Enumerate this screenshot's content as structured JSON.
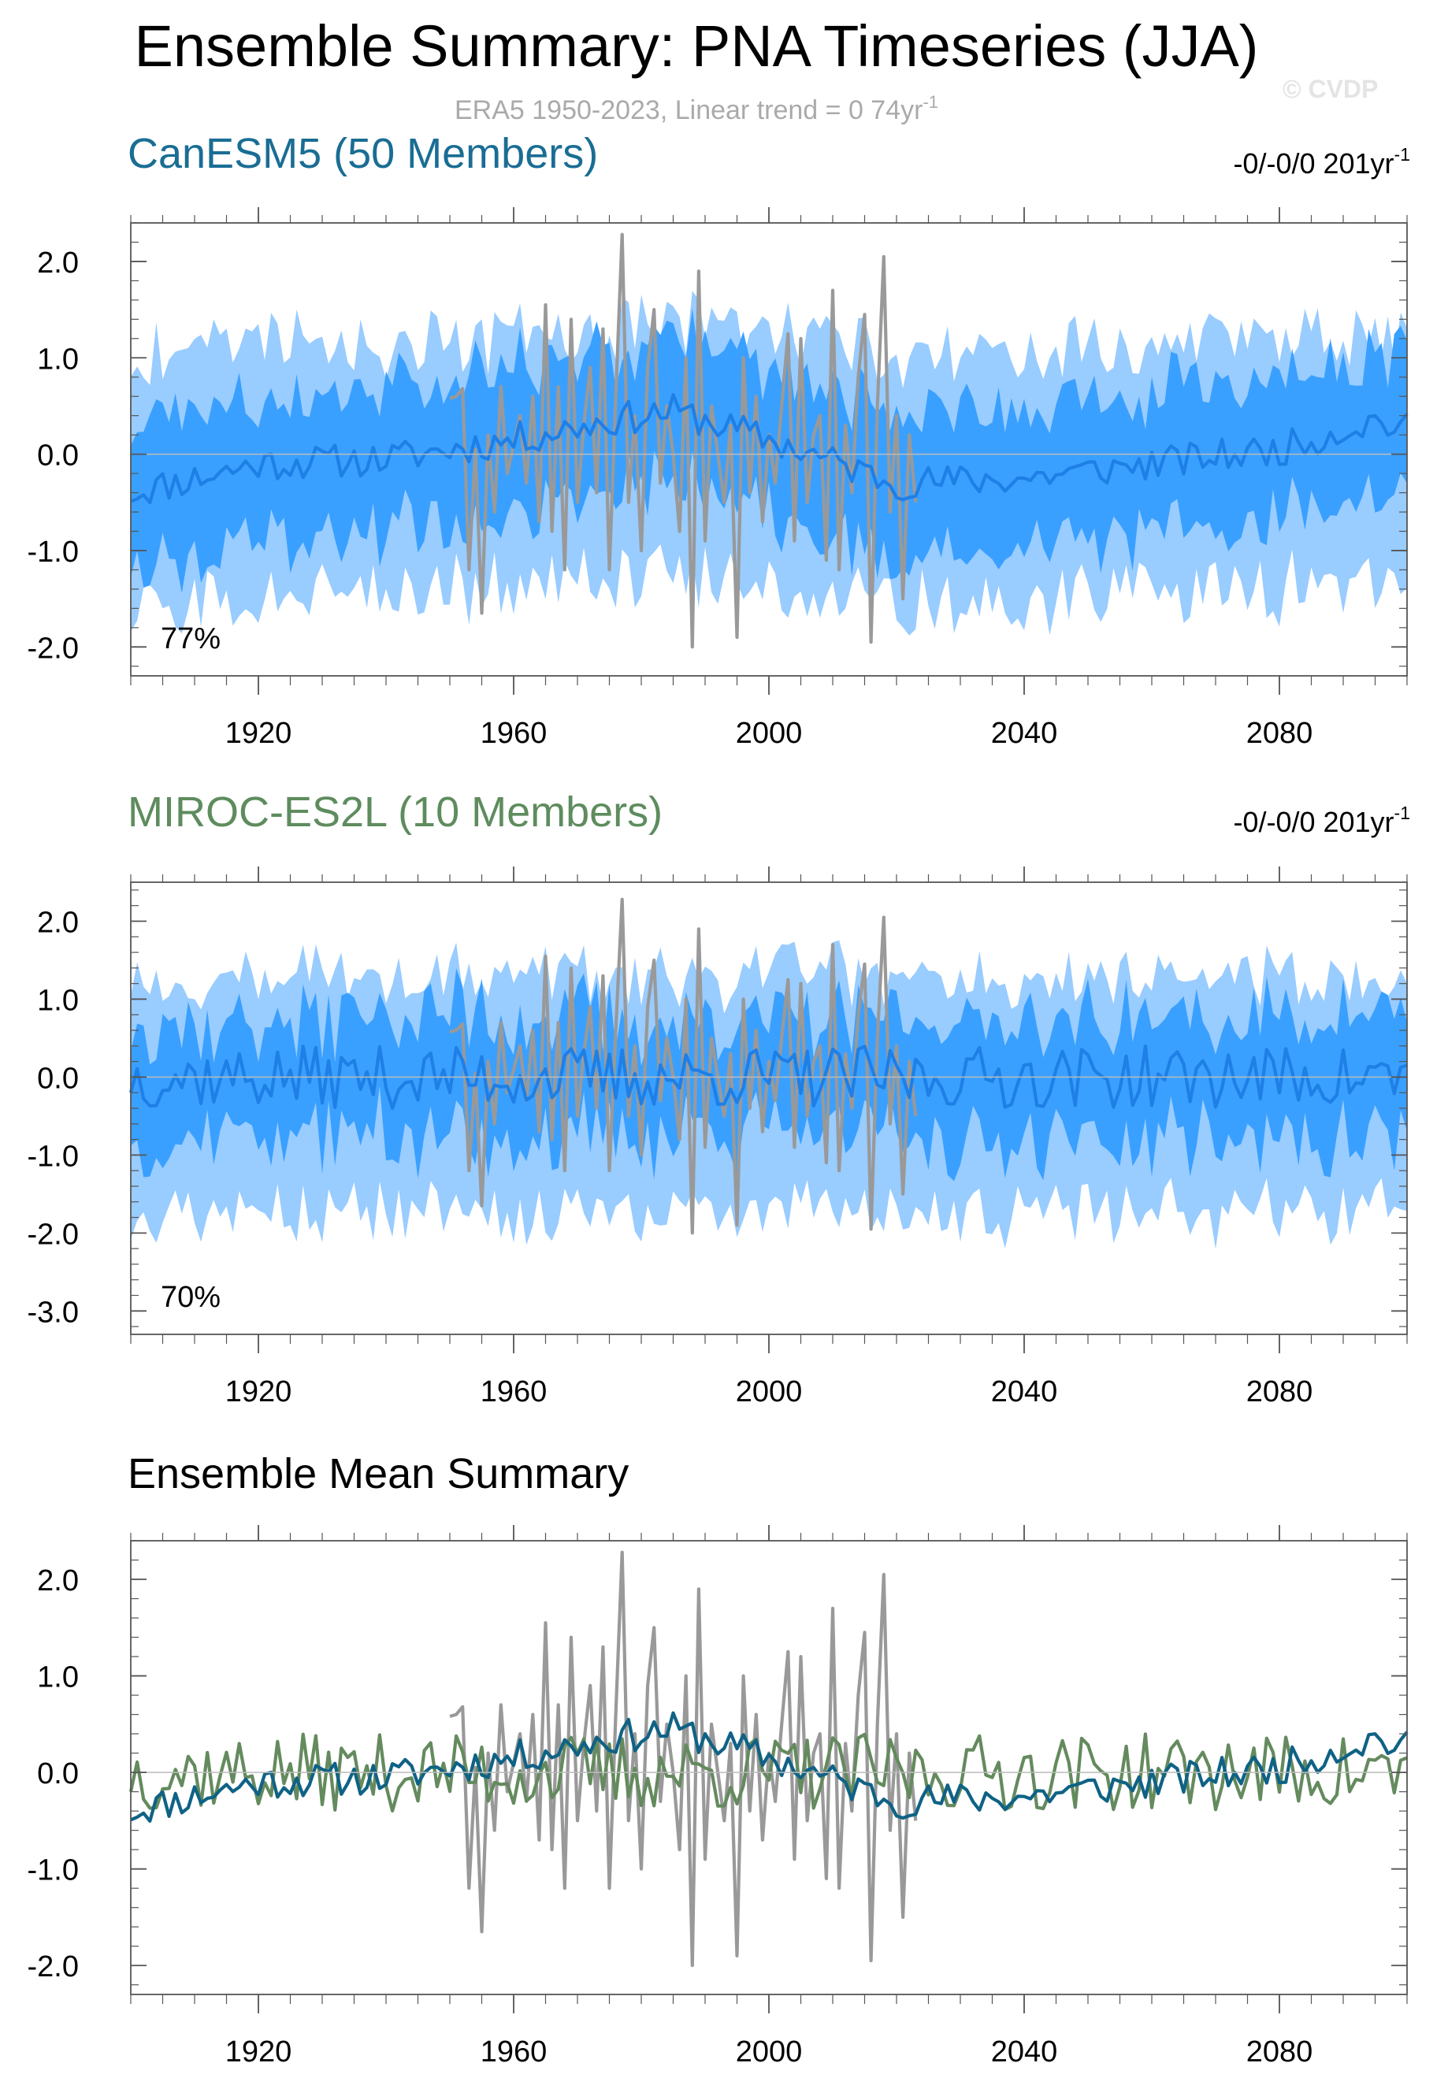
{
  "figure": {
    "title": "Ensemble Summary: PNA Timeseries (JJA)",
    "subtitle": {
      "text": "ERA5 1950-2023, Linear trend = 0 74yr",
      "sup": "-1"
    },
    "watermark": "© CVDP"
  },
  "colors": {
    "outer_band": "#99ccff",
    "inner_band": "#3aa0ff",
    "ens_mean_line": "#1e7fe6",
    "obs_line": "#999999",
    "canesm5_title": "#1a6d94",
    "miroc_title": "#5e8c5e",
    "canesm5_mean_summary": "#0f6285",
    "miroc_mean_summary": "#648a5e",
    "axis": "#555555"
  },
  "chart_data": [
    {
      "type": "area",
      "title": "CanESM5 (50 Members)",
      "trend_label": {
        "text": "-0/-0/0 201yr",
        "sup": "-1"
      },
      "percent_label": "77%",
      "xlim": [
        1900,
        2100
      ],
      "ylim": [
        -2.3,
        2.4
      ],
      "xticks": [
        1920,
        1960,
        2000,
        2040,
        2080
      ],
      "yticks": [
        2.0,
        1.0,
        0.0,
        -1.0,
        -2.0
      ],
      "ytick_labels": [
        "2.0",
        "1.0",
        "0.0",
        "-1.0",
        "-2.0"
      ],
      "series": [
        {
          "name": "ensemble 10-90% range",
          "x_start": 1900,
          "x_end": 2100,
          "center": -0.2,
          "half_width": 1.3
        },
        {
          "name": "ensemble 25-75% range",
          "x_start": 1900,
          "x_end": 2100,
          "center": -0.2,
          "half_width": 0.75
        },
        {
          "name": "ensemble mean",
          "x": [
            1900,
            1920,
            1940,
            1960,
            1975,
            1985,
            2000,
            2020,
            2040,
            2060,
            2080,
            2095,
            2100
          ],
          "y": [
            -0.4,
            -0.1,
            -0.05,
            0.15,
            0.35,
            0.45,
            0.15,
            -0.3,
            -0.25,
            -0.1,
            0.05,
            0.35,
            0.25
          ]
        },
        {
          "name": "ERA5",
          "x_start": 1950,
          "x_end": 2023,
          "values": [
            0.58,
            0.6,
            0.68,
            -1.2,
            0.05,
            -1.65,
            0.2,
            -0.6,
            0.7,
            -0.2,
            0.1,
            0.4,
            -0.3,
            0.6,
            -0.7,
            1.55,
            -0.8,
            0.7,
            -1.2,
            1.4,
            -0.5,
            0.3,
            0.9,
            -0.4,
            1.3,
            -1.2,
            0.6,
            2.28,
            -0.5,
            0.4,
            -1.0,
            0.9,
            1.5,
            -0.3,
            0.5,
            0.0,
            -0.8,
            1.0,
            -2.0,
            1.9,
            -0.9,
            0.5,
            0.0,
            -0.5,
            0.3,
            -1.9,
            1.0,
            -0.4,
            0.6,
            -0.7,
            0.2,
            -0.3,
            0.5,
            1.25,
            -0.9,
            1.2,
            -0.5,
            0.2,
            0.4,
            -1.1,
            1.7,
            -1.2,
            0.3,
            -0.4,
            0.8,
            1.45,
            -1.95,
            0.5,
            2.05,
            -0.6,
            0.4,
            -1.5,
            0.2,
            -0.5
          ]
        }
      ]
    },
    {
      "type": "area",
      "title": "MIROC-ES2L (10 Members)",
      "trend_label": {
        "text": "-0/-0/0 201yr",
        "sup": "-1"
      },
      "percent_label": "70%",
      "xlim": [
        1900,
        2100
      ],
      "ylim": [
        -3.3,
        2.5
      ],
      "xticks": [
        1920,
        1960,
        2000,
        2040,
        2080
      ],
      "yticks": [
        2.0,
        1.0,
        0.0,
        -1.0,
        -2.0,
        -3.0
      ],
      "ytick_labels": [
        "2.0",
        "1.0",
        "0.0",
        "-1.0",
        "-2.0",
        "-3.0"
      ],
      "series": [
        {
          "name": "ensemble 10-90% range",
          "x_start": 1900,
          "x_end": 2100,
          "center": -0.35,
          "half_width": 1.5
        },
        {
          "name": "ensemble 25-75% range",
          "x_start": 1900,
          "x_end": 2100,
          "center": -0.2,
          "half_width": 0.75
        },
        {
          "name": "ensemble mean",
          "x_start": 1900,
          "x_end": 2100,
          "center": 0.0,
          "amplitude": 0.4
        },
        {
          "name": "ERA5",
          "x_start": 1950,
          "x_end": 2023,
          "same_as": "CanESM5 panel ERA5"
        }
      ]
    },
    {
      "type": "line",
      "title": "Ensemble Mean Summary",
      "xlim": [
        1900,
        2100
      ],
      "ylim": [
        -2.3,
        2.4
      ],
      "xticks": [
        1920,
        1960,
        2000,
        2040,
        2080
      ],
      "yticks": [
        2.0,
        1.0,
        0.0,
        -1.0,
        -2.0
      ],
      "ytick_labels": [
        "2.0",
        "1.0",
        "0.0",
        "-1.0",
        "-2.0"
      ],
      "series": [
        {
          "name": "CanESM5 ensemble mean",
          "x": [
            1900,
            1920,
            1940,
            1960,
            1975,
            1985,
            2000,
            2020,
            2040,
            2060,
            2080,
            2095,
            2100
          ],
          "y": [
            -0.4,
            -0.1,
            -0.05,
            0.15,
            0.35,
            0.45,
            0.15,
            -0.3,
            -0.25,
            -0.1,
            0.05,
            0.35,
            0.25
          ]
        },
        {
          "name": "MIROC-ES2L ensemble mean",
          "x_start": 1900,
          "x_end": 2100,
          "center": 0.0,
          "amplitude": 0.4
        },
        {
          "name": "ERA5",
          "x_start": 1950,
          "x_end": 2023,
          "same_as": "CanESM5 panel ERA5"
        }
      ]
    }
  ]
}
